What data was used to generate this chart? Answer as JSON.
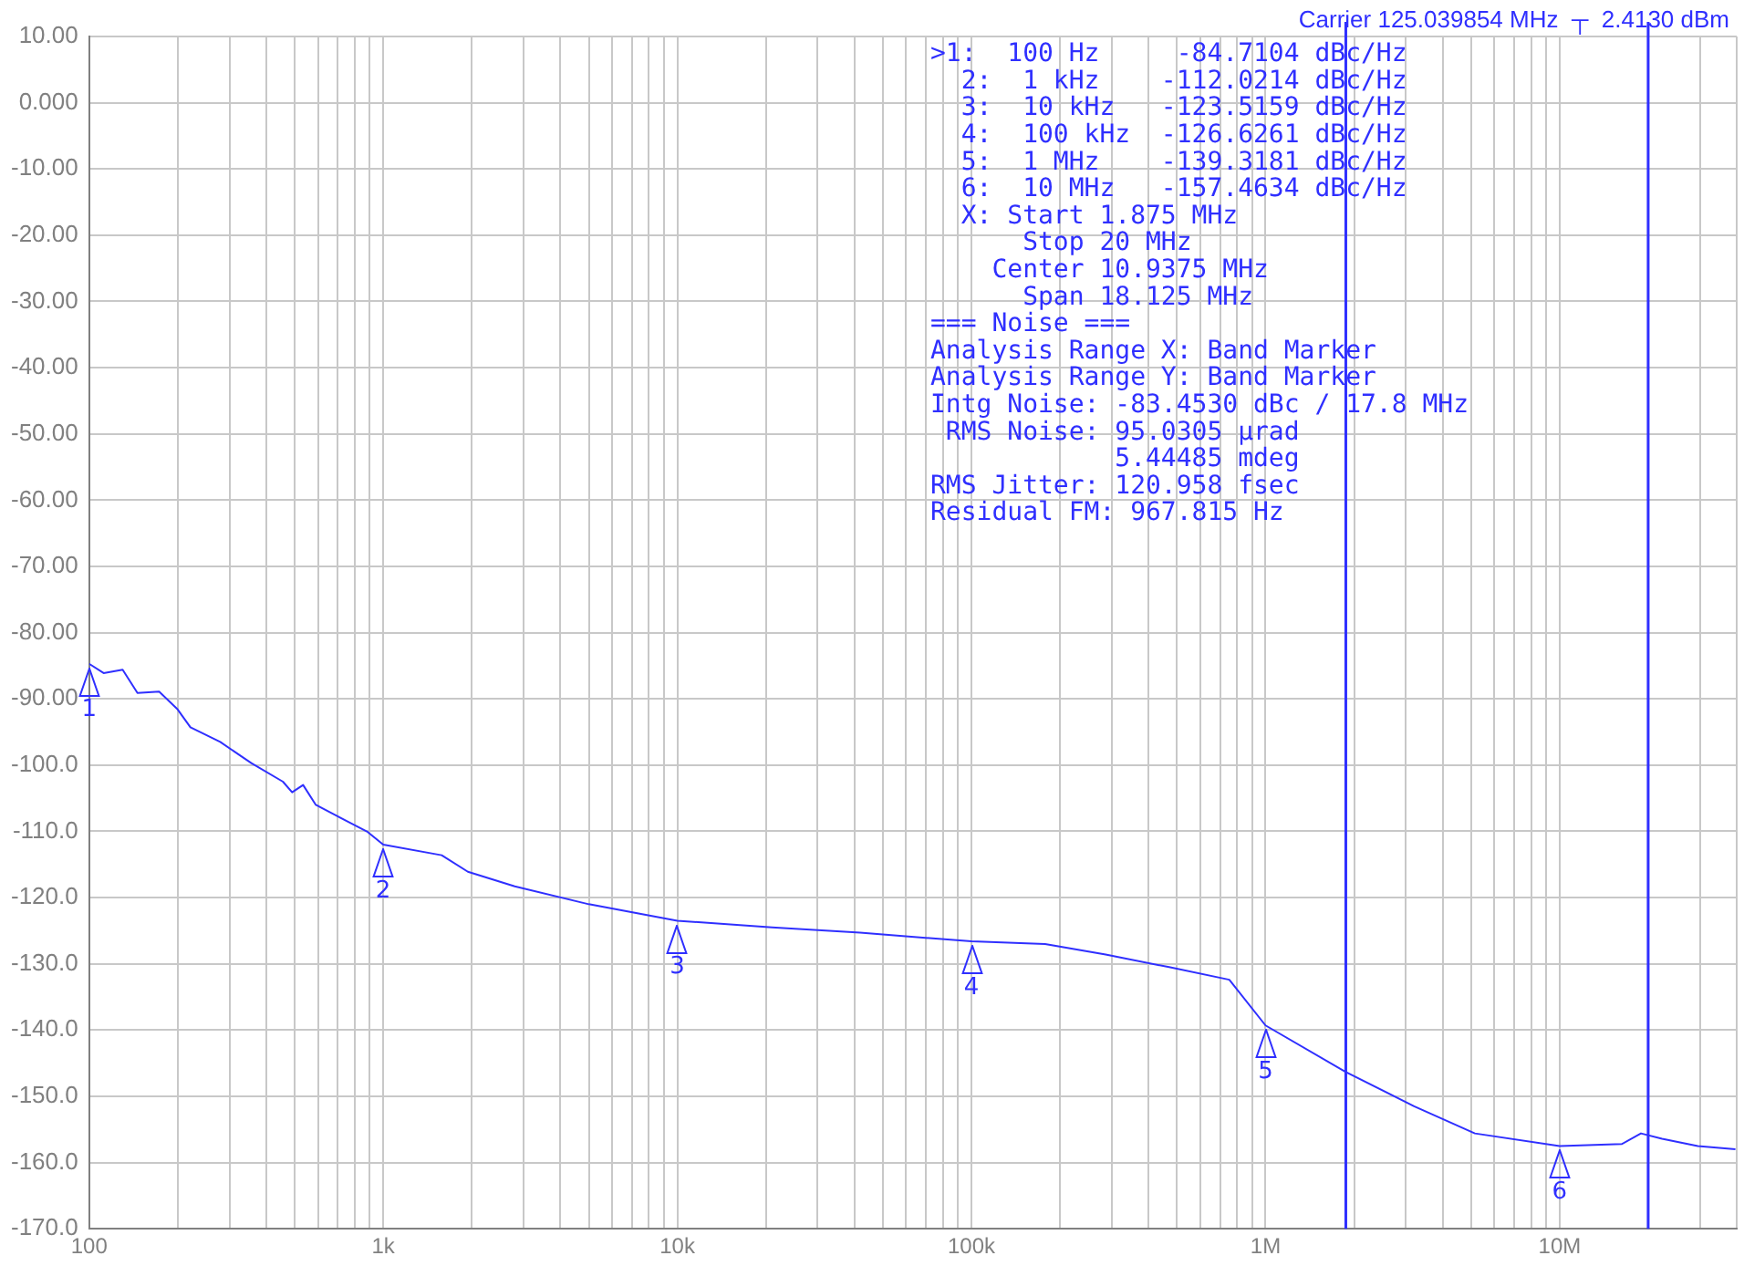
{
  "chart_data": {
    "type": "line",
    "title": "Carrier 125.039854 MHz  ┬  2.4130 dBm",
    "x": [
      100,
      112,
      130,
      146,
      173,
      200,
      221,
      279,
      356,
      456,
      490,
      534,
      590,
      733,
      886,
      1000,
      1580,
      1940,
      2800,
      5000,
      10000,
      21000,
      41800,
      100000,
      178000,
      286000,
      470000,
      753000,
      1000000,
      1870000,
      3200000,
      5150000,
      10000000,
      16300000,
      18900000,
      22300000,
      29500000,
      39600000
    ],
    "series": [
      {
        "color": "#2f2fff",
        "values": [
          -84.7,
          -86.1,
          -85.6,
          -89.1,
          -88.9,
          -91.6,
          -94.3,
          -96.5,
          -99.7,
          -102.5,
          -104.1,
          -103,
          -106,
          -108.2,
          -110.1,
          -112,
          -113.6,
          -116.1,
          -118.3,
          -121,
          -123.5,
          -124.5,
          -125.3,
          -126.6,
          -127,
          -128.6,
          -130.5,
          -132.4,
          -139.3,
          -146.3,
          -151.5,
          -155.6,
          -157.5,
          -157.2,
          -155.6,
          -156.4,
          -157.5,
          -158
        ]
      }
    ],
    "log": "x",
    "xlim": [
      100,
      40000000
    ],
    "ylim": [
      -170,
      10
    ],
    "xticks": [
      {
        "value": 100,
        "label": "100"
      },
      {
        "value": 200,
        "label": null
      },
      {
        "value": 300,
        "label": null
      },
      {
        "value": 400,
        "label": null
      },
      {
        "value": 500,
        "label": null
      },
      {
        "value": 600,
        "label": null
      },
      {
        "value": 700,
        "label": null
      },
      {
        "value": 800,
        "label": null
      },
      {
        "value": 900,
        "label": null
      },
      {
        "value": 1000,
        "label": "1k"
      },
      {
        "value": 2000,
        "label": null
      },
      {
        "value": 3000,
        "label": null
      },
      {
        "value": 4000,
        "label": null
      },
      {
        "value": 5000,
        "label": null
      },
      {
        "value": 6000,
        "label": null
      },
      {
        "value": 7000,
        "label": null
      },
      {
        "value": 8000,
        "label": null
      },
      {
        "value": 9000,
        "label": null
      },
      {
        "value": 10000,
        "label": "10k"
      },
      {
        "value": 20000,
        "label": null
      },
      {
        "value": 30000,
        "label": null
      },
      {
        "value": 40000,
        "label": null
      },
      {
        "value": 50000,
        "label": null
      },
      {
        "value": 60000,
        "label": null
      },
      {
        "value": 70000,
        "label": null
      },
      {
        "value": 80000,
        "label": null
      },
      {
        "value": 90000,
        "label": null
      },
      {
        "value": 100000,
        "label": "100k"
      },
      {
        "value": 200000,
        "label": null
      },
      {
        "value": 300000,
        "label": null
      },
      {
        "value": 400000,
        "label": null
      },
      {
        "value": 500000,
        "label": null
      },
      {
        "value": 600000,
        "label": null
      },
      {
        "value": 700000,
        "label": null
      },
      {
        "value": 800000,
        "label": null
      },
      {
        "value": 900000,
        "label": null
      },
      {
        "value": 1000000,
        "label": "1M"
      },
      {
        "value": 2000000,
        "label": null
      },
      {
        "value": 3000000,
        "label": null
      },
      {
        "value": 4000000,
        "label": null
      },
      {
        "value": 5000000,
        "label": null
      },
      {
        "value": 6000000,
        "label": null
      },
      {
        "value": 7000000,
        "label": null
      },
      {
        "value": 8000000,
        "label": null
      },
      {
        "value": 9000000,
        "label": null
      },
      {
        "value": 10000000,
        "label": "10M"
      },
      {
        "value": 20000000,
        "label": null
      },
      {
        "value": 30000000,
        "label": null
      },
      {
        "value": 40000000,
        "label": null
      }
    ],
    "yticks": [
      {
        "value": 10,
        "label": "10.00"
      },
      {
        "value": 0,
        "label": "0.000"
      },
      {
        "value": -10,
        "label": "-10.00"
      },
      {
        "value": -20,
        "label": "-20.00"
      },
      {
        "value": -30,
        "label": "-30.00"
      },
      {
        "value": -40,
        "label": "-40.00"
      },
      {
        "value": -50,
        "label": "-50.00"
      },
      {
        "value": -60,
        "label": "-60.00"
      },
      {
        "value": -70,
        "label": "-70.00"
      },
      {
        "value": -80,
        "label": "-80.00"
      },
      {
        "value": -90,
        "label": "-90.00"
      },
      {
        "value": -100,
        "label": "-100.0"
      },
      {
        "value": -110,
        "label": "-110.0"
      },
      {
        "value": -120,
        "label": "-120.0"
      },
      {
        "value": -130,
        "label": "-130.0"
      },
      {
        "value": -140,
        "label": "-140.0"
      },
      {
        "value": -150,
        "label": "-150.0"
      },
      {
        "value": -160,
        "label": "-160.0"
      },
      {
        "value": -170,
        "label": "-170.0"
      }
    ],
    "grid": true,
    "marker": "none",
    "line_style": "solid",
    "ref_lines": [
      {
        "axis": "x",
        "value": 1875000,
        "color": "#2f2fff"
      },
      {
        "axis": "x",
        "value": 20000000,
        "color": "#2f2fff"
      }
    ],
    "annotations": [
      {
        "text": "1",
        "x": 100,
        "y": -84.7
      },
      {
        "text": "2",
        "x": 1000,
        "y": -112
      },
      {
        "text": "3",
        "x": 10000,
        "y": -123.5
      },
      {
        "text": "4",
        "x": 100000,
        "y": -126.6
      },
      {
        "text": "5",
        "x": 1000000,
        "y": -139.3
      },
      {
        "text": "6",
        "x": 10000000,
        "y": -157.5
      },
      ">1:  100 Hz     -84.7104 dBc/Hz",
      "  2:  1 kHz    -112.0214 dBc/Hz",
      "  3:  10 kHz   -123.5159 dBc/Hz",
      "  4:  100 kHz  -126.6261 dBc/Hz",
      "  5:  1 MHz    -139.3181 dBc/Hz",
      "  6:  10 MHz   -157.4634 dBc/Hz",
      "  X: Start 1.875 MHz",
      "      Stop 20 MHz",
      "    Center 10.9375 MHz",
      "      Span 18.125 MHz",
      "=== Noise ===",
      "Analysis Range X: Band Marker",
      "Analysis Range Y: Band Marker",
      "Intg Noise: -83.4530 dBc / 17.8 MHz",
      " RMS Noise: 95.0305 µrad",
      "            5.44485 mdeg",
      "RMS Jitter: 120.958 fsec",
      "Residual FM: 967.815 Hz"
    ]
  }
}
